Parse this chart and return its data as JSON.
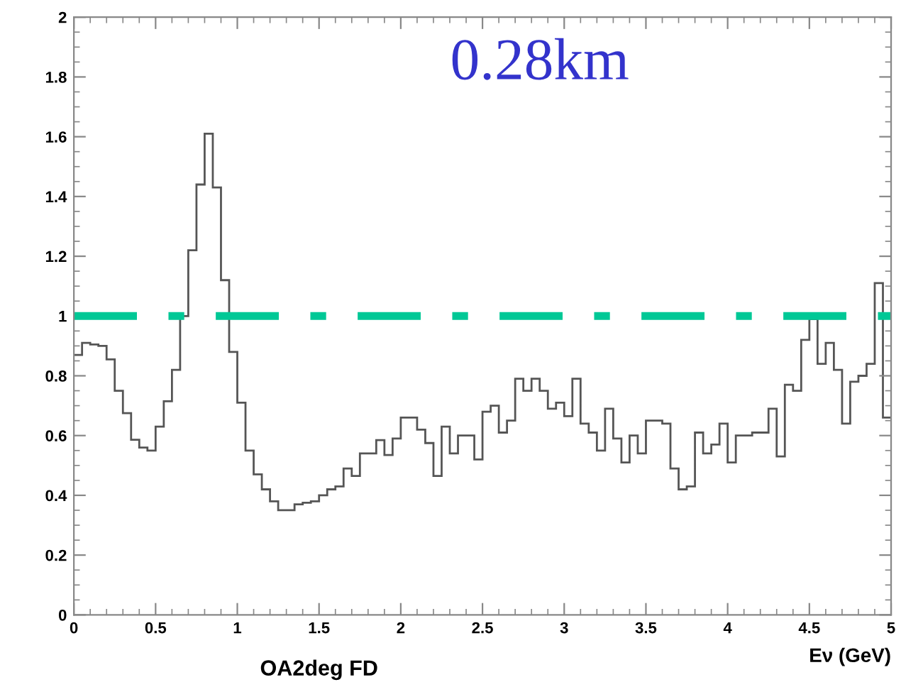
{
  "chart_data": {
    "type": "histogram",
    "xlabel": "Eν (GeV)",
    "annotations": [
      "0.28km",
      "OA2deg FD"
    ],
    "bins": [
      0,
      0.05,
      0.1,
      0.15,
      0.2,
      0.25,
      0.3,
      0.35,
      0.4,
      0.45,
      0.5,
      0.55,
      0.6,
      0.65,
      0.7,
      0.75,
      0.8,
      0.85,
      0.9,
      0.95,
      1,
      1.05,
      1.1,
      1.15,
      1.2,
      1.25,
      1.3,
      1.35,
      1.4,
      1.45,
      1.5,
      1.55,
      1.6,
      1.65,
      1.7,
      1.75,
      1.8,
      1.85,
      1.9,
      1.95,
      2,
      2.05,
      2.1,
      2.15,
      2.2,
      2.25,
      2.3,
      2.35,
      2.4,
      2.45,
      2.5,
      2.55,
      2.6,
      2.65,
      2.7,
      2.75,
      2.8,
      2.85,
      2.9,
      2.95,
      3,
      3.05,
      3.1,
      3.15,
      3.2,
      3.25,
      3.3,
      3.35,
      3.4,
      3.45,
      3.5,
      3.55,
      3.6,
      3.65,
      3.7,
      3.75,
      3.8,
      3.85,
      3.9,
      3.95,
      4,
      4.05,
      4.1,
      4.15,
      4.2,
      4.25,
      4.3,
      4.35,
      4.4,
      4.45,
      4.5,
      4.55,
      4.6,
      4.65,
      4.7,
      4.75,
      4.8,
      4.85,
      4.9,
      4.95,
      5
    ],
    "values": [
      0.87,
      0.91,
      0.905,
      0.9,
      0.855,
      0.75,
      0.675,
      0.586,
      0.56,
      0.55,
      0.63,
      0.715,
      0.82,
      1.0,
      1.22,
      1.44,
      1.61,
      1.43,
      1.12,
      0.88,
      0.71,
      0.55,
      0.47,
      0.42,
      0.38,
      0.35,
      0.35,
      0.37,
      0.375,
      0.38,
      0.4,
      0.42,
      0.43,
      0.49,
      0.465,
      0.54,
      0.54,
      0.585,
      0.535,
      0.59,
      0.66,
      0.66,
      0.62,
      0.575,
      0.465,
      0.63,
      0.54,
      0.6,
      0.6,
      0.52,
      0.68,
      0.7,
      0.61,
      0.65,
      0.79,
      0.75,
      0.79,
      0.75,
      0.69,
      0.71,
      0.665,
      0.79,
      0.64,
      0.61,
      0.55,
      0.69,
      0.59,
      0.51,
      0.6,
      0.54,
      0.65,
      0.65,
      0.64,
      0.49,
      0.42,
      0.43,
      0.61,
      0.54,
      0.57,
      0.64,
      0.51,
      0.6,
      0.6,
      0.61,
      0.61,
      0.69,
      0.53,
      0.77,
      0.75,
      0.92,
      0.99,
      0.84,
      0.91,
      0.82,
      0.64,
      0.78,
      0.8,
      0.84,
      1.11,
      0.66
    ],
    "color": "#555555",
    "xlim": [
      0,
      5
    ],
    "ylim": [
      0,
      2
    ],
    "xticks": [
      0,
      0.5,
      1,
      1.5,
      2,
      2.5,
      3,
      3.5,
      4,
      4.5,
      5
    ],
    "yticks": [
      0,
      0.2,
      0.4,
      0.6,
      0.8,
      1,
      1.2,
      1.4,
      1.6,
      1.8,
      2
    ],
    "ref_lines": [
      {
        "axis": "y",
        "value": 1,
        "color": "#00c896",
        "line_style": "dashdot"
      }
    ],
    "grid": false,
    "legend": false
  }
}
